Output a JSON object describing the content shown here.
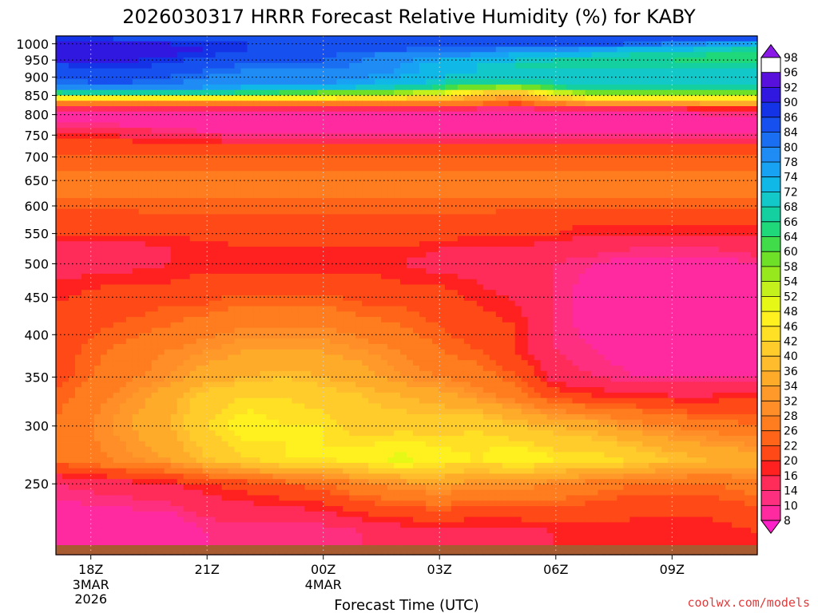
{
  "chart_data": {
    "type": "heatmap",
    "title": "2026030317 HRRR Forecast Relative Humidity (%) for KABY",
    "xlabel": "Forecast Time (UTC)",
    "ylabel": "",
    "y_scale": "log-pressure",
    "y_range_hpa": [
      1025,
      200
    ],
    "x_range_hours": [
      -0.9,
      17.2
    ],
    "x_ticks": [
      {
        "hour": 0,
        "label": "18Z",
        "sub1": "3MAR",
        "sub2": "2026"
      },
      {
        "hour": 3,
        "label": "21Z",
        "sub1": "",
        "sub2": ""
      },
      {
        "hour": 6,
        "label": "00Z",
        "sub1": "4MAR",
        "sub2": ""
      },
      {
        "hour": 9,
        "label": "03Z",
        "sub1": "",
        "sub2": ""
      },
      {
        "hour": 12,
        "label": "06Z",
        "sub1": "",
        "sub2": ""
      },
      {
        "hour": 15,
        "label": "09Z",
        "sub1": "",
        "sub2": ""
      }
    ],
    "y_ticks": [
      250,
      300,
      350,
      400,
      450,
      500,
      550,
      600,
      650,
      700,
      750,
      800,
      850,
      900,
      950,
      1000
    ],
    "grid": true,
    "colorbar": {
      "levels": [
        8,
        10,
        14,
        16,
        20,
        22,
        26,
        28,
        32,
        34,
        36,
        40,
        42,
        46,
        48,
        52,
        54,
        58,
        60,
        64,
        66,
        68,
        72,
        74,
        78,
        80,
        84,
        86,
        90,
        92,
        96,
        98
      ],
      "colors": [
        "#ff1fc8",
        "#ff2aa0",
        "#ff2f80",
        "#ff2c5a",
        "#ff2020",
        "#ff4a18",
        "#ff6418",
        "#ff7d1e",
        "#ff8e28",
        "#ff9a2a",
        "#ffab2a",
        "#ffbc2c",
        "#ffcc2c",
        "#ffe024",
        "#fff020",
        "#e6f816",
        "#c4f01c",
        "#98e81e",
        "#6ee028",
        "#40dc4a",
        "#1ed87a",
        "#14d0a0",
        "#12c8c8",
        "#10b8e8",
        "#18a2f4",
        "#1e8cf4",
        "#1a6ef2",
        "#1650ee",
        "#1432e6",
        "#3018e0",
        "#5810dc",
        "#8a18e6"
      ],
      "extend": "both"
    },
    "ground_color": "#a85a30",
    "rows_hpa": [
      215,
      250,
      270,
      300,
      330,
      350,
      380,
      410,
      440,
      470,
      500,
      525,
      550,
      580,
      610,
      640,
      670,
      700,
      725,
      750,
      775,
      800,
      820,
      835,
      850,
      865,
      880,
      900,
      920,
      940,
      960,
      980,
      1000,
      1012
    ],
    "cols_hours": [
      -1,
      0.5,
      2,
      3,
      4,
      5,
      6,
      7,
      8,
      9,
      10,
      11,
      12,
      13,
      14,
      15,
      16,
      17.2
    ],
    "rh_grid": [
      [
        10,
        10,
        10,
        14,
        14,
        14,
        14,
        16,
        18,
        18,
        18,
        18,
        20,
        20,
        20,
        20,
        20,
        22
      ],
      [
        16,
        18,
        20,
        22,
        24,
        26,
        28,
        32,
        34,
        36,
        34,
        34,
        32,
        30,
        28,
        28,
        28,
        30
      ],
      [
        28,
        32,
        36,
        42,
        46,
        48,
        48,
        50,
        54,
        50,
        48,
        52,
        48,
        48,
        46,
        42,
        40,
        38
      ],
      [
        28,
        34,
        40,
        46,
        50,
        48,
        48,
        44,
        44,
        44,
        46,
        42,
        40,
        38,
        34,
        32,
        30,
        28
      ],
      [
        26,
        32,
        38,
        44,
        46,
        46,
        44,
        42,
        40,
        38,
        34,
        30,
        24,
        22,
        22,
        20,
        20,
        22
      ],
      [
        24,
        30,
        34,
        38,
        40,
        42,
        40,
        38,
        34,
        32,
        30,
        26,
        18,
        16,
        14,
        14,
        14,
        14
      ],
      [
        24,
        28,
        32,
        34,
        36,
        36,
        36,
        34,
        32,
        28,
        26,
        22,
        16,
        14,
        12,
        12,
        12,
        12
      ],
      [
        24,
        26,
        28,
        30,
        32,
        32,
        32,
        30,
        28,
        26,
        24,
        22,
        16,
        12,
        10,
        10,
        10,
        12
      ],
      [
        22,
        24,
        26,
        26,
        28,
        28,
        28,
        26,
        26,
        24,
        22,
        20,
        16,
        12,
        10,
        10,
        10,
        12
      ],
      [
        20,
        22,
        22,
        24,
        24,
        24,
        24,
        24,
        22,
        22,
        20,
        18,
        16,
        12,
        10,
        10,
        10,
        12
      ],
      [
        18,
        18,
        20,
        20,
        20,
        20,
        20,
        20,
        20,
        18,
        18,
        18,
        16,
        14,
        12,
        12,
        12,
        14
      ],
      [
        18,
        18,
        20,
        20,
        22,
        22,
        22,
        22,
        22,
        20,
        20,
        20,
        18,
        18,
        16,
        16,
        16,
        18
      ],
      [
        22,
        22,
        22,
        24,
        24,
        24,
        24,
        24,
        24,
        24,
        22,
        22,
        22,
        20,
        20,
        20,
        20,
        20
      ],
      [
        24,
        24,
        26,
        26,
        26,
        26,
        26,
        26,
        26,
        26,
        26,
        24,
        24,
        24,
        24,
        24,
        24,
        24
      ],
      [
        28,
        28,
        28,
        28,
        28,
        28,
        28,
        28,
        28,
        28,
        28,
        28,
        28,
        28,
        28,
        28,
        28,
        28
      ],
      [
        28,
        28,
        28,
        28,
        28,
        28,
        28,
        28,
        28,
        28,
        28,
        28,
        28,
        28,
        28,
        28,
        28,
        28
      ],
      [
        28,
        28,
        28,
        28,
        28,
        28,
        28,
        28,
        28,
        28,
        28,
        28,
        28,
        28,
        28,
        28,
        28,
        28
      ],
      [
        26,
        26,
        26,
        26,
        26,
        26,
        26,
        26,
        26,
        26,
        26,
        26,
        26,
        26,
        26,
        26,
        26,
        26
      ],
      [
        24,
        24,
        24,
        24,
        22,
        22,
        22,
        22,
        22,
        22,
        22,
        22,
        22,
        22,
        22,
        22,
        22,
        22
      ],
      [
        20,
        20,
        18,
        16,
        14,
        14,
        14,
        14,
        14,
        14,
        14,
        14,
        14,
        14,
        14,
        14,
        14,
        14
      ],
      [
        14,
        14,
        12,
        10,
        10,
        10,
        10,
        10,
        10,
        10,
        10,
        10,
        10,
        10,
        10,
        10,
        10,
        10
      ],
      [
        12,
        12,
        10,
        10,
        10,
        10,
        10,
        10,
        10,
        10,
        10,
        12,
        12,
        12,
        12,
        12,
        14,
        14
      ],
      [
        20,
        20,
        20,
        20,
        20,
        20,
        20,
        20,
        20,
        20,
        18,
        16,
        20,
        22,
        22,
        22,
        24,
        24
      ],
      [
        40,
        40,
        40,
        40,
        40,
        40,
        40,
        40,
        40,
        40,
        36,
        32,
        40,
        44,
        44,
        44,
        46,
        46
      ],
      [
        58,
        60,
        60,
        60,
        60,
        58,
        56,
        54,
        52,
        48,
        40,
        36,
        48,
        54,
        54,
        54,
        56,
        56
      ],
      [
        78,
        80,
        80,
        78,
        76,
        74,
        72,
        70,
        68,
        62,
        54,
        50,
        62,
        70,
        70,
        70,
        70,
        70
      ],
      [
        84,
        86,
        84,
        82,
        80,
        80,
        80,
        78,
        76,
        72,
        68,
        70,
        72,
        72,
        72,
        72,
        72,
        72
      ],
      [
        86,
        88,
        86,
        84,
        82,
        82,
        82,
        80,
        78,
        74,
        72,
        72,
        72,
        72,
        72,
        72,
        72,
        72
      ],
      [
        88,
        90,
        88,
        86,
        84,
        84,
        84,
        82,
        80,
        76,
        74,
        72,
        72,
        72,
        72,
        72,
        72,
        72
      ],
      [
        90,
        92,
        90,
        88,
        86,
        86,
        86,
        84,
        80,
        76,
        74,
        72,
        70,
        70,
        70,
        68,
        68,
        68
      ],
      [
        94,
        94,
        92,
        90,
        88,
        86,
        86,
        84,
        82,
        80,
        78,
        76,
        74,
        72,
        70,
        68,
        66,
        66
      ],
      [
        96,
        96,
        94,
        92,
        90,
        88,
        88,
        86,
        86,
        84,
        84,
        82,
        80,
        78,
        76,
        74,
        72,
        70
      ],
      [
        94,
        94,
        92,
        90,
        90,
        88,
        88,
        88,
        88,
        88,
        90,
        90,
        90,
        88,
        86,
        84,
        80,
        78
      ],
      [
        90,
        90,
        88,
        88,
        86,
        86,
        86,
        86,
        86,
        86,
        86,
        86,
        86,
        86,
        86,
        86,
        86,
        86
      ]
    ]
  },
  "credit": "coolwx.com/models"
}
